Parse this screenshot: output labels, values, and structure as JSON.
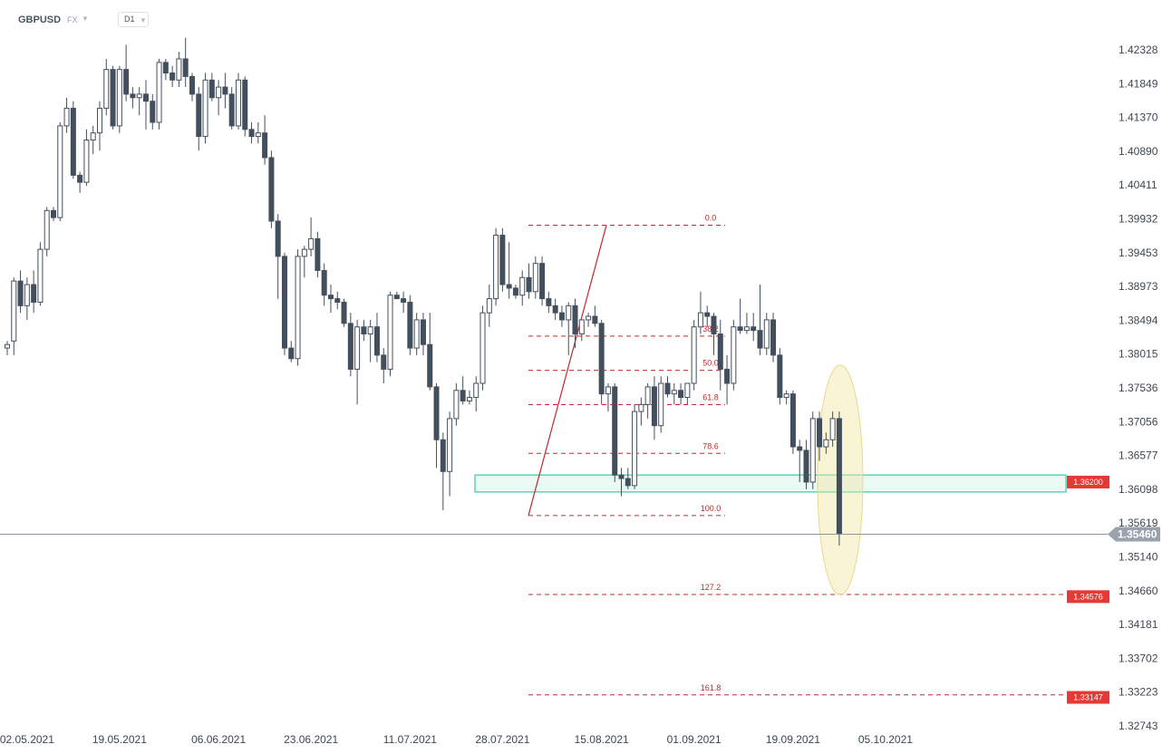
{
  "toolbar": {
    "symbol": "GBPUSD",
    "market": "FX",
    "timeframe": "D1"
  },
  "colors": {
    "bear": "#434f5c",
    "bull_body": "#ffffff",
    "wick": "#434f5c",
    "fib": "#c62828",
    "zone": "#5fd3b3",
    "highlight": "#f4e7a6",
    "price_tag": "#9aa3ad"
  },
  "chart_data": {
    "type": "candlestick",
    "timeframe": "D1",
    "ylim": [
      1.3245,
      1.4265
    ],
    "y_ticks": [
      "1.42328",
      "1.41849",
      "1.41370",
      "1.40890",
      "1.40411",
      "1.39932",
      "1.39453",
      "1.38973",
      "1.38494",
      "1.38015",
      "1.37536",
      "1.37056",
      "1.36577",
      "1.36098",
      "1.35619",
      "1.35140",
      "1.34660",
      "1.34181",
      "1.33702",
      "1.33223",
      "1.32743"
    ],
    "x_ticks": [
      {
        "label": "02.05.2021",
        "index": 3
      },
      {
        "label": "19.05.2021",
        "index": 17
      },
      {
        "label": "06.06.2021",
        "index": 32
      },
      {
        "label": "23.06.2021",
        "index": 46
      },
      {
        "label": "11.07.2021",
        "index": 61
      },
      {
        "label": "28.07.2021",
        "index": 75
      },
      {
        "label": "15.08.2021",
        "index": 90
      },
      {
        "label": "01.09.2021",
        "index": 104
      },
      {
        "label": "19.09.2021",
        "index": 119
      },
      {
        "label": "05.10.2021",
        "index": 133
      }
    ],
    "candles": [
      [
        1.381,
        1.382,
        1.38,
        1.3815
      ],
      [
        1.382,
        1.391,
        1.38,
        1.3905
      ],
      [
        1.3905,
        1.392,
        1.386,
        1.387
      ],
      [
        1.387,
        1.391,
        1.385,
        1.39
      ],
      [
        1.39,
        1.392,
        1.386,
        1.3875
      ],
      [
        1.3875,
        1.396,
        1.387,
        1.395
      ],
      [
        1.395,
        1.401,
        1.394,
        1.4005
      ],
      [
        1.4005,
        1.401,
        1.399,
        1.3995
      ],
      [
        1.3995,
        1.413,
        1.399,
        1.4125
      ],
      [
        1.4125,
        1.4165,
        1.4115,
        1.415
      ],
      [
        1.415,
        1.416,
        1.405,
        1.4055
      ],
      [
        1.4055,
        1.406,
        1.403,
        1.4045
      ],
      [
        1.4045,
        1.412,
        1.404,
        1.4105
      ],
      [
        1.4105,
        1.4125,
        1.4085,
        1.4115
      ],
      [
        1.4115,
        1.416,
        1.409,
        1.415
      ],
      [
        1.415,
        1.422,
        1.414,
        1.4205
      ],
      [
        1.4205,
        1.421,
        1.412,
        1.4125
      ],
      [
        1.4125,
        1.421,
        1.4115,
        1.4205
      ],
      [
        1.4205,
        1.424,
        1.416,
        1.417
      ],
      [
        1.417,
        1.418,
        1.415,
        1.4165
      ],
      [
        1.4165,
        1.418,
        1.414,
        1.417
      ],
      [
        1.417,
        1.419,
        1.412,
        1.416
      ],
      [
        1.416,
        1.417,
        1.412,
        1.413
      ],
      [
        1.413,
        1.422,
        1.412,
        1.4215
      ],
      [
        1.4215,
        1.422,
        1.419,
        1.42
      ],
      [
        1.42,
        1.421,
        1.418,
        1.419
      ],
      [
        1.419,
        1.423,
        1.418,
        1.422
      ],
      [
        1.422,
        1.425,
        1.418,
        1.4195
      ],
      [
        1.4195,
        1.42,
        1.416,
        1.417
      ],
      [
        1.417,
        1.418,
        1.409,
        1.411
      ],
      [
        1.411,
        1.42,
        1.41,
        1.419
      ],
      [
        1.419,
        1.42,
        1.416,
        1.4165
      ],
      [
        1.4165,
        1.419,
        1.414,
        1.418
      ],
      [
        1.418,
        1.42,
        1.415,
        1.417
      ],
      [
        1.417,
        1.418,
        1.412,
        1.4125
      ],
      [
        1.4125,
        1.42,
        1.412,
        1.419
      ],
      [
        1.419,
        1.4195,
        1.411,
        1.412
      ],
      [
        1.412,
        1.413,
        1.41,
        1.411
      ],
      [
        1.411,
        1.413,
        1.41,
        1.4115
      ],
      [
        1.4115,
        1.414,
        1.407,
        1.408
      ],
      [
        1.408,
        1.409,
        1.398,
        1.399
      ],
      [
        1.399,
        1.4,
        1.388,
        1.394
      ],
      [
        1.394,
        1.3945,
        1.38,
        1.381
      ],
      [
        1.381,
        1.382,
        1.379,
        1.3795
      ],
      [
        1.3795,
        1.395,
        1.3785,
        1.394
      ],
      [
        1.394,
        1.3955,
        1.391,
        1.395
      ],
      [
        1.395,
        1.3995,
        1.394,
        1.3965
      ],
      [
        1.3965,
        1.3975,
        1.391,
        1.392
      ],
      [
        1.392,
        1.393,
        1.387,
        1.3885
      ],
      [
        1.3885,
        1.39,
        1.386,
        1.388
      ],
      [
        1.388,
        1.389,
        1.3865,
        1.3875
      ],
      [
        1.3875,
        1.388,
        1.384,
        1.3845
      ],
      [
        1.3845,
        1.386,
        1.377,
        1.378
      ],
      [
        1.378,
        1.385,
        1.373,
        1.384
      ],
      [
        1.384,
        1.385,
        1.382,
        1.383
      ],
      [
        1.383,
        1.385,
        1.379,
        1.384
      ],
      [
        1.384,
        1.386,
        1.379,
        1.38
      ],
      [
        1.38,
        1.381,
        1.376,
        1.378
      ],
      [
        1.378,
        1.389,
        1.377,
        1.3885
      ],
      [
        1.3885,
        1.389,
        1.388,
        1.388
      ],
      [
        1.388,
        1.389,
        1.386,
        1.3875
      ],
      [
        1.3875,
        1.3885,
        1.38,
        1.381
      ],
      [
        1.381,
        1.386,
        1.38,
        1.385
      ],
      [
        1.385,
        1.386,
        1.38,
        1.3815
      ],
      [
        1.3815,
        1.386,
        1.375,
        1.3755
      ],
      [
        1.3755,
        1.376,
        1.364,
        1.368
      ],
      [
        1.368,
        1.369,
        1.358,
        1.3635
      ],
      [
        1.3635,
        1.372,
        1.36,
        1.371
      ],
      [
        1.371,
        1.376,
        1.37,
        1.375
      ],
      [
        1.375,
        1.377,
        1.373,
        1.3735
      ],
      [
        1.3735,
        1.375,
        1.373,
        1.374
      ],
      [
        1.374,
        1.377,
        1.372,
        1.376
      ],
      [
        1.376,
        1.387,
        1.375,
        1.386
      ],
      [
        1.386,
        1.39,
        1.384,
        1.388
      ],
      [
        1.388,
        1.398,
        1.387,
        1.397
      ],
      [
        1.397,
        1.398,
        1.389,
        1.39
      ],
      [
        1.39,
        1.396,
        1.388,
        1.3895
      ],
      [
        1.3895,
        1.39,
        1.388,
        1.3885
      ],
      [
        1.3885,
        1.392,
        1.387,
        1.391
      ],
      [
        1.391,
        1.393,
        1.388,
        1.389
      ],
      [
        1.389,
        1.394,
        1.388,
        1.393
      ],
      [
        1.393,
        1.394,
        1.387,
        1.388
      ],
      [
        1.388,
        1.389,
        1.386,
        1.387
      ],
      [
        1.387,
        1.388,
        1.385,
        1.386
      ],
      [
        1.386,
        1.387,
        1.384,
        1.385
      ],
      [
        1.385,
        1.3875,
        1.38,
        1.387
      ],
      [
        1.387,
        1.388,
        1.381,
        1.383
      ],
      [
        1.383,
        1.385,
        1.382,
        1.385
      ],
      [
        1.385,
        1.386,
        1.384,
        1.3855
      ],
      [
        1.3855,
        1.387,
        1.384,
        1.3845
      ],
      [
        1.3845,
        1.385,
        1.373,
        1.3745
      ],
      [
        1.3745,
        1.376,
        1.372,
        1.3755
      ],
      [
        1.3755,
        1.376,
        1.362,
        1.363
      ],
      [
        1.363,
        1.364,
        1.36,
        1.3625
      ],
      [
        1.3625,
        1.364,
        1.361,
        1.3615
      ],
      [
        1.3615,
        1.373,
        1.361,
        1.372
      ],
      [
        1.372,
        1.374,
        1.37,
        1.373
      ],
      [
        1.373,
        1.376,
        1.371,
        1.3755
      ],
      [
        1.3755,
        1.377,
        1.368,
        1.37
      ],
      [
        1.37,
        1.377,
        1.369,
        1.376
      ],
      [
        1.376,
        1.377,
        1.374,
        1.3745
      ],
      [
        1.3745,
        1.376,
        1.373,
        1.375
      ],
      [
        1.375,
        1.376,
        1.373,
        1.374
      ],
      [
        1.374,
        1.376,
        1.373,
        1.376
      ],
      [
        1.376,
        1.385,
        1.375,
        1.384
      ],
      [
        1.384,
        1.389,
        1.383,
        1.386
      ],
      [
        1.386,
        1.387,
        1.384,
        1.3855
      ],
      [
        1.3855,
        1.386,
        1.38,
        1.383
      ],
      [
        1.383,
        1.385,
        1.375,
        1.378
      ],
      [
        1.378,
        1.38,
        1.373,
        1.376
      ],
      [
        1.376,
        1.385,
        1.375,
        1.384
      ],
      [
        1.384,
        1.388,
        1.383,
        1.3835
      ],
      [
        1.3835,
        1.386,
        1.383,
        1.384
      ],
      [
        1.384,
        1.386,
        1.382,
        1.3835
      ],
      [
        1.3835,
        1.39,
        1.38,
        1.381
      ],
      [
        1.381,
        1.386,
        1.38,
        1.385
      ],
      [
        1.385,
        1.386,
        1.379,
        1.38
      ],
      [
        1.38,
        1.381,
        1.373,
        1.374
      ],
      [
        1.374,
        1.375,
        1.373,
        1.3745
      ],
      [
        1.3745,
        1.375,
        1.366,
        1.367
      ],
      [
        1.367,
        1.368,
        1.362,
        1.3665
      ],
      [
        1.3665,
        1.368,
        1.361,
        1.362
      ],
      [
        1.362,
        1.372,
        1.361,
        1.371
      ],
      [
        1.371,
        1.372,
        1.365,
        1.367
      ],
      [
        1.367,
        1.369,
        1.366,
        1.368
      ],
      [
        1.368,
        1.372,
        1.367,
        1.371
      ],
      [
        1.371,
        1.372,
        1.353,
        1.3546
      ]
    ],
    "fibonacci": {
      "high": 1.39842,
      "low": 1.35726,
      "levels": [
        {
          "label": "0.0",
          "ratio": 0
        },
        {
          "label": "38.2",
          "ratio": 0.382
        },
        {
          "label": "50.0",
          "ratio": 0.5
        },
        {
          "label": "61.8",
          "ratio": 0.618
        },
        {
          "label": "78.6",
          "ratio": 0.786
        },
        {
          "label": "100.0",
          "ratio": 1
        },
        {
          "label": "127.2",
          "ratio": 1.272
        },
        {
          "label": "161.8",
          "ratio": 1.618
        }
      ]
    },
    "support_zone": {
      "low": 1.3606,
      "high": 1.363
    },
    "price_tags": [
      {
        "label": "1.36200",
        "value": 1.362,
        "color": "#e53935"
      },
      {
        "label": "1.34576",
        "value": 1.34576,
        "color": "#e53935"
      },
      {
        "label": "1.33147",
        "value": 1.33147,
        "color": "#e53935"
      }
    ],
    "current_price": {
      "label": "1.35460",
      "value": 1.3546
    }
  }
}
